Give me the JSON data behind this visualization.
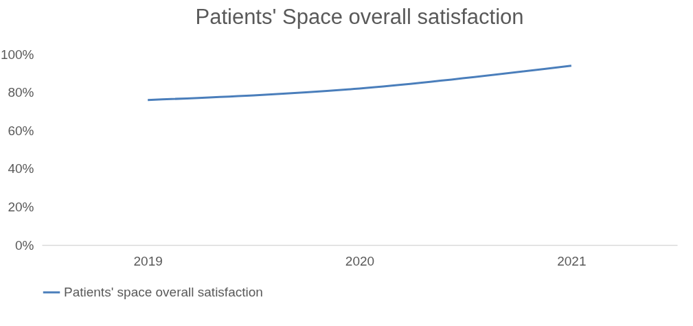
{
  "chart_data": {
    "type": "line",
    "title": "Patients' Space overall satisfaction",
    "categories": [
      "2019",
      "2020",
      "2021"
    ],
    "series": [
      {
        "name": "Patients' space overall satisfaction",
        "color": "#4a7ebb",
        "values": [
          76,
          82,
          94
        ]
      }
    ],
    "ylim": [
      0,
      100
    ],
    "yticks": [
      {
        "value": 0,
        "label": "0%"
      },
      {
        "value": 20,
        "label": "20%"
      },
      {
        "value": 40,
        "label": "40%"
      },
      {
        "value": 60,
        "label": "60%"
      },
      {
        "value": 80,
        "label": "80%"
      },
      {
        "value": 100,
        "label": "100%"
      }
    ],
    "grid": false,
    "legend": "bottom",
    "marker": "none",
    "line_style": "solid"
  }
}
